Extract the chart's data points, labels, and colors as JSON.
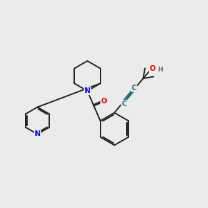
{
  "background_color": "#ebebeb",
  "bond_color": "#222222",
  "bond_width": 1.4,
  "N_color": "#0000ee",
  "O_color": "#ee0000",
  "C_triple_color": "#2a7070",
  "H_color": "#555555",
  "font_size_atom": 7.5,
  "font_size_H": 6.5,
  "xlim": [
    0,
    10
  ],
  "ylim": [
    0,
    10
  ]
}
